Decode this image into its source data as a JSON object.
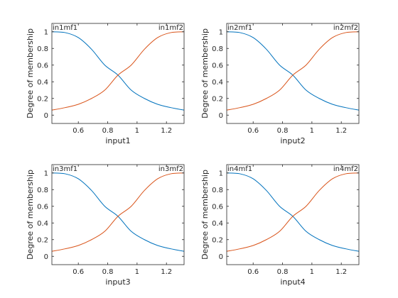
{
  "colors": {
    "mf1": "#0072BD",
    "mf2": "#D95319",
    "axis": "#262626",
    "background": "#ffffff"
  },
  "chart_data": [
    {
      "type": "line",
      "xlabel": "input1",
      "ylabel": "Degree of membership",
      "xlim": [
        0.42,
        1.32
      ],
      "ylim": [
        -0.1,
        1.1
      ],
      "xticks": [
        "0.6",
        "0.8",
        "1",
        "1.2"
      ],
      "yticks": [
        "0",
        "0.2",
        "0.4",
        "0.6",
        "0.8",
        "1"
      ],
      "grid": false,
      "series": [
        {
          "name": "in1mf1",
          "mf_type": "zmf",
          "params": [
            0.42,
            1.32
          ],
          "color": "#0072BD",
          "x": [
            0.42,
            0.51,
            0.6,
            0.69,
            0.78,
            0.87,
            0.96,
            1.05,
            1.14,
            1.23,
            1.32
          ],
          "y": [
            1.0,
            0.99,
            0.93,
            0.79,
            0.6,
            0.48,
            0.3,
            0.2,
            0.13,
            0.09,
            0.06
          ]
        },
        {
          "name": "in1mf2",
          "mf_type": "smf",
          "params": [
            0.42,
            1.32
          ],
          "color": "#D95319",
          "x": [
            0.42,
            0.51,
            0.6,
            0.69,
            0.78,
            0.87,
            0.96,
            1.05,
            1.14,
            1.23,
            1.32
          ],
          "y": [
            0.06,
            0.09,
            0.13,
            0.2,
            0.3,
            0.48,
            0.6,
            0.79,
            0.93,
            0.99,
            1.0
          ]
        }
      ]
    },
    {
      "type": "line",
      "xlabel": "input2",
      "ylabel": "Degree of membership",
      "xlim": [
        0.42,
        1.32
      ],
      "ylim": [
        -0.1,
        1.1
      ],
      "xticks": [
        "0.6",
        "0.8",
        "1",
        "1.2"
      ],
      "yticks": [
        "0",
        "0.2",
        "0.4",
        "0.6",
        "0.8",
        "1"
      ],
      "grid": false,
      "series": [
        {
          "name": "in2mf1",
          "mf_type": "zmf",
          "params": [
            0.42,
            1.32
          ],
          "color": "#0072BD",
          "x": [
            0.42,
            0.51,
            0.6,
            0.69,
            0.78,
            0.87,
            0.96,
            1.05,
            1.14,
            1.23,
            1.32
          ],
          "y": [
            1.0,
            0.99,
            0.93,
            0.79,
            0.6,
            0.48,
            0.3,
            0.2,
            0.13,
            0.09,
            0.06
          ]
        },
        {
          "name": "in2mf2",
          "mf_type": "smf",
          "params": [
            0.42,
            1.32
          ],
          "color": "#D95319",
          "x": [
            0.42,
            0.51,
            0.6,
            0.69,
            0.78,
            0.87,
            0.96,
            1.05,
            1.14,
            1.23,
            1.32
          ],
          "y": [
            0.06,
            0.09,
            0.13,
            0.2,
            0.3,
            0.48,
            0.6,
            0.79,
            0.93,
            0.99,
            1.0
          ]
        }
      ]
    },
    {
      "type": "line",
      "xlabel": "input3",
      "ylabel": "Degree of membership",
      "xlim": [
        0.42,
        1.32
      ],
      "ylim": [
        -0.1,
        1.1
      ],
      "xticks": [
        "0.6",
        "0.8",
        "1",
        "1.2"
      ],
      "yticks": [
        "0",
        "0.2",
        "0.4",
        "0.6",
        "0.8",
        "1"
      ],
      "grid": false,
      "series": [
        {
          "name": "in3mf1",
          "mf_type": "zmf",
          "params": [
            0.42,
            1.32
          ],
          "color": "#0072BD",
          "x": [
            0.42,
            0.51,
            0.6,
            0.69,
            0.78,
            0.87,
            0.96,
            1.05,
            1.14,
            1.23,
            1.32
          ],
          "y": [
            1.0,
            0.99,
            0.93,
            0.79,
            0.6,
            0.48,
            0.3,
            0.2,
            0.13,
            0.09,
            0.06
          ]
        },
        {
          "name": "in3mf2",
          "mf_type": "smf",
          "params": [
            0.42,
            1.32
          ],
          "color": "#D95319",
          "x": [
            0.42,
            0.51,
            0.6,
            0.69,
            0.78,
            0.87,
            0.96,
            1.05,
            1.14,
            1.23,
            1.32
          ],
          "y": [
            0.06,
            0.09,
            0.13,
            0.2,
            0.3,
            0.48,
            0.6,
            0.79,
            0.93,
            0.99,
            1.0
          ]
        }
      ]
    },
    {
      "type": "line",
      "xlabel": "input4",
      "ylabel": "Degree of membership",
      "xlim": [
        0.42,
        1.32
      ],
      "ylim": [
        -0.1,
        1.1
      ],
      "xticks": [
        "0.6",
        "0.8",
        "1",
        "1.2"
      ],
      "yticks": [
        "0",
        "0.2",
        "0.4",
        "0.6",
        "0.8",
        "1"
      ],
      "grid": false,
      "series": [
        {
          "name": "in4mf1",
          "mf_type": "zmf",
          "params": [
            0.42,
            1.32
          ],
          "color": "#0072BD",
          "x": [
            0.42,
            0.51,
            0.6,
            0.69,
            0.78,
            0.87,
            0.96,
            1.05,
            1.14,
            1.23,
            1.32
          ],
          "y": [
            1.0,
            0.99,
            0.93,
            0.79,
            0.6,
            0.48,
            0.3,
            0.2,
            0.13,
            0.09,
            0.06
          ]
        },
        {
          "name": "in4mf2",
          "mf_type": "smf",
          "params": [
            0.42,
            1.32
          ],
          "color": "#D95319",
          "x": [
            0.42,
            0.51,
            0.6,
            0.69,
            0.78,
            0.87,
            0.96,
            1.05,
            1.14,
            1.23,
            1.32
          ],
          "y": [
            0.06,
            0.09,
            0.13,
            0.2,
            0.3,
            0.48,
            0.6,
            0.79,
            0.93,
            0.99,
            1.0
          ]
        }
      ]
    }
  ]
}
